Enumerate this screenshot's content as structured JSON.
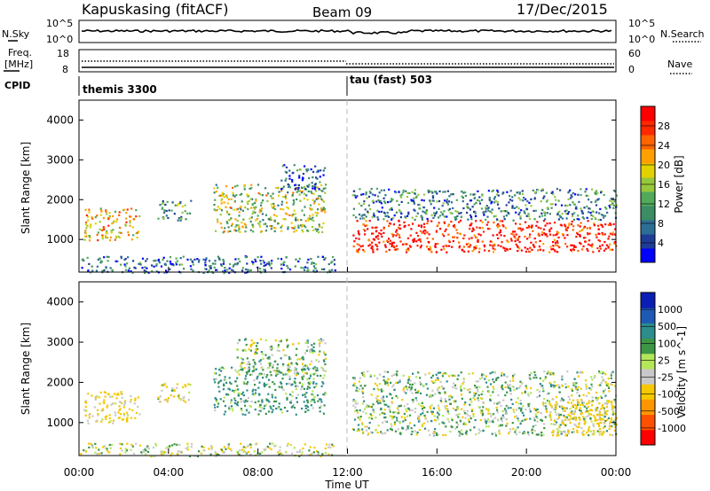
{
  "header": {
    "station": "Kapuskasing (fitACF)",
    "beam": "Beam 09",
    "date": "17/Dec/2015"
  },
  "noise_panel": {
    "left_label": "N.Sky",
    "right_label": "N.Search",
    "left_ticks": [
      "10^5",
      "10^0"
    ],
    "right_ticks": [
      "10^5",
      "10^0"
    ]
  },
  "freq_panel": {
    "left_label_line1": "Freq.",
    "left_label_line2": "[MHz]",
    "right_label": "Nave",
    "left_ticks": [
      "18",
      "8"
    ],
    "right_ticks": [
      "60",
      "0"
    ]
  },
  "cpid": {
    "label": "CPID",
    "modes": [
      {
        "name": "themis 3300",
        "start": "00:00",
        "end": "12:00"
      },
      {
        "name": "tau (fast) 503",
        "start": "12:00",
        "end": "24:00"
      }
    ]
  },
  "chart_data": [
    {
      "type": "heatmap",
      "title": "Power [dB]",
      "ylabel": "Slant Range [km]",
      "xlabel": "Time UT",
      "ylim": [
        180,
        4500
      ],
      "x_ticks": [
        "00:00",
        "04:00",
        "08:00",
        "12:00",
        "16:00",
        "20:00",
        "00:00"
      ],
      "y_ticks": [
        1000,
        2000,
        3000,
        4000
      ],
      "colorbar": {
        "label": "Power [dB]",
        "ticks": [
          "28",
          "24",
          "20",
          "16",
          "12",
          "8",
          "4"
        ],
        "colors": [
          "#0000ff",
          "#1e3c96",
          "#2d6e96",
          "#3c8c64",
          "#50aa5a",
          "#96c83c",
          "#e1d200",
          "#ffa000",
          "#ff6400",
          "#ff2800",
          "#ff0000"
        ]
      },
      "echo_regions": [
        {
          "t0": 0.2,
          "t1": 2.7,
          "r0": 1000,
          "r1": 1800,
          "power": 20
        },
        {
          "t0": 3.5,
          "t1": 5.0,
          "r0": 1500,
          "r1": 2000,
          "power": 12
        },
        {
          "t0": 6.0,
          "t1": 11.0,
          "r0": 1200,
          "r1": 2400,
          "power": 16
        },
        {
          "t0": 9.0,
          "t1": 11.0,
          "r0": 2200,
          "r1": 2900,
          "power": 8
        },
        {
          "t0": 0.0,
          "t1": 11.5,
          "r0": 180,
          "r1": 600,
          "power": 8
        },
        {
          "t0": 12.2,
          "t1": 24.0,
          "r0": 700,
          "r1": 1500,
          "power": 28
        },
        {
          "t0": 12.2,
          "t1": 24.0,
          "r0": 1500,
          "r1": 2300,
          "power": 10
        }
      ]
    },
    {
      "type": "heatmap",
      "title": "Velocity [m s^-1]",
      "ylabel": "Slant Range [km]",
      "xlabel": "Time UT",
      "ylim": [
        180,
        4500
      ],
      "x_ticks": [
        "00:00",
        "04:00",
        "08:00",
        "12:00",
        "16:00",
        "20:00",
        "00:00"
      ],
      "y_ticks": [
        1000,
        2000,
        3000,
        4000
      ],
      "colorbar": {
        "label": "Velocity [m s^-1]",
        "ticks": [
          "1000",
          "500",
          "100",
          "25",
          "-25",
          "-100",
          "-500",
          "-1000"
        ],
        "colors": [
          "#ff0000",
          "#ff5000",
          "#ff9600",
          "#f5c800",
          "#c8c8c8",
          "#b4e65a",
          "#3c9646",
          "#2d8c8c",
          "#1e5ab4",
          "#0a1eb4"
        ]
      },
      "echo_regions": [
        {
          "t0": 0.2,
          "t1": 2.7,
          "r0": 1000,
          "r1": 1800,
          "velocity": -150
        },
        {
          "t0": 3.5,
          "t1": 5.0,
          "r0": 1500,
          "r1": 2000,
          "velocity": -100
        },
        {
          "t0": 6.0,
          "t1": 11.0,
          "r0": 1200,
          "r1": 2400,
          "velocity": 100
        },
        {
          "t0": 7.0,
          "t1": 11.0,
          "r0": 2200,
          "r1": 3100,
          "velocity": 0
        },
        {
          "t0": 0.0,
          "t1": 11.5,
          "r0": 180,
          "r1": 500,
          "velocity": -50
        },
        {
          "t0": 12.2,
          "t1": 24.0,
          "r0": 700,
          "r1": 2300,
          "velocity": 0
        },
        {
          "t0": 21.0,
          "t1": 24.0,
          "r0": 700,
          "r1": 1600,
          "velocity": -200
        }
      ]
    }
  ]
}
